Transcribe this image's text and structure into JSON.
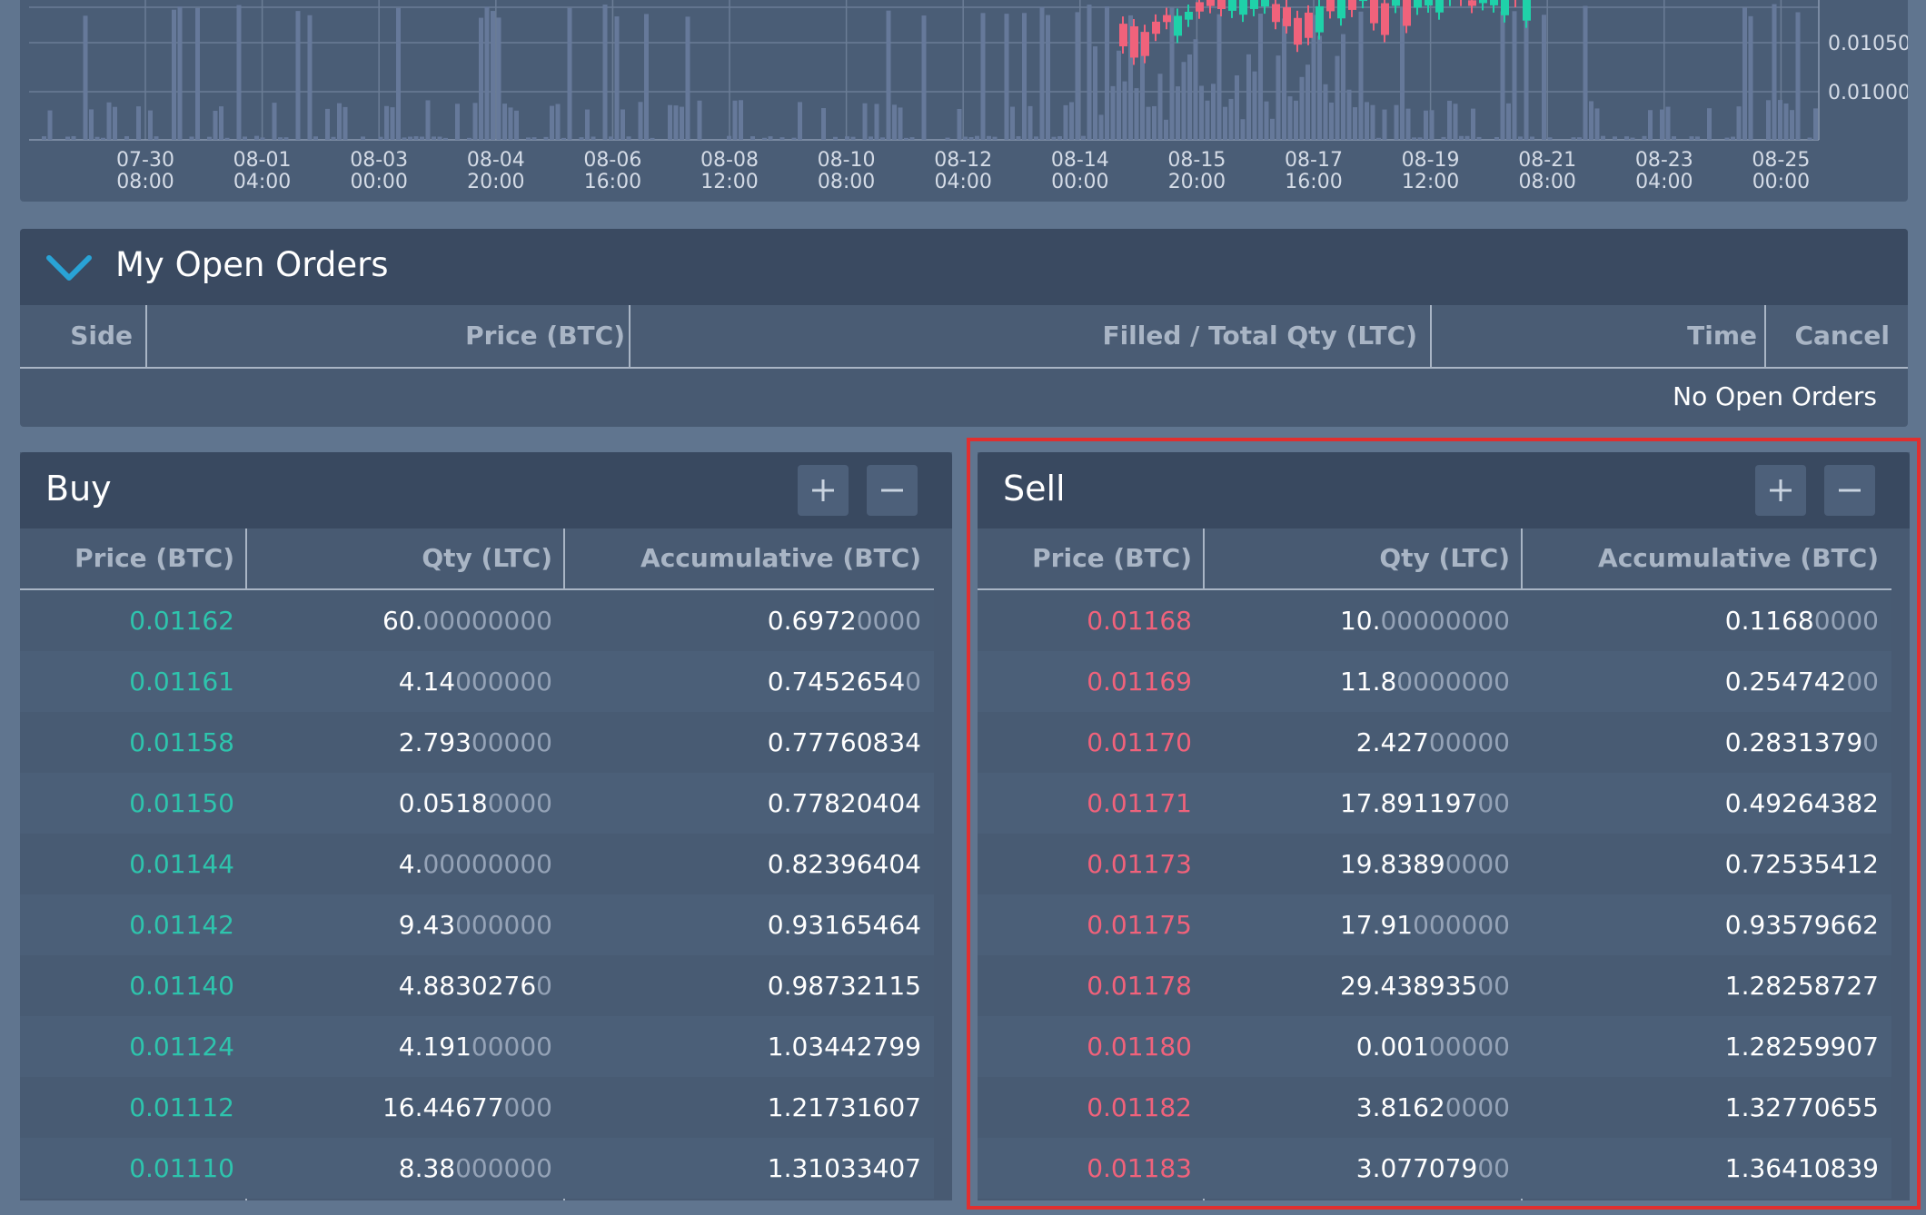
{
  "chart": {
    "y_ticks": [
      "0.01050",
      "0.01000"
    ],
    "x_ticks": [
      [
        "07-30",
        "08:00"
      ],
      [
        "08-01",
        "04:00"
      ],
      [
        "08-03",
        "00:00"
      ],
      [
        "08-04",
        "20:00"
      ],
      [
        "08-06",
        "16:00"
      ],
      [
        "08-08",
        "12:00"
      ],
      [
        "08-10",
        "08:00"
      ],
      [
        "08-12",
        "04:00"
      ],
      [
        "08-14",
        "00:00"
      ],
      [
        "08-15",
        "20:00"
      ],
      [
        "08-17",
        "16:00"
      ],
      [
        "08-19",
        "12:00"
      ],
      [
        "08-21",
        "08:00"
      ],
      [
        "08-23",
        "04:00"
      ],
      [
        "08-25",
        "00:00"
      ]
    ],
    "colors": {
      "up": "#1fd1a9",
      "down": "#f0627b",
      "volume": "#66799a"
    }
  },
  "open_orders": {
    "title": "My Open Orders",
    "columns": [
      "Side",
      "Price (BTC)",
      "Filled / Total Qty (LTC)",
      "Time",
      "Cancel"
    ],
    "empty_text": "No Open Orders"
  },
  "buy": {
    "title": "Buy",
    "columns": [
      "Price (BTC)",
      "Qty (LTC)",
      "Accumulative (BTC)"
    ],
    "rows": [
      {
        "price": "0.01162",
        "qty": [
          "60.",
          "00000000"
        ],
        "acc": [
          "0.6972",
          "0000"
        ]
      },
      {
        "price": "0.01161",
        "qty": [
          "4.14",
          "000000"
        ],
        "acc": [
          "0.7452654",
          "0"
        ]
      },
      {
        "price": "0.01158",
        "qty": [
          "2.793",
          "00000"
        ],
        "acc": [
          "0.77760834",
          ""
        ]
      },
      {
        "price": "0.01150",
        "qty": [
          "0.0518",
          "0000"
        ],
        "acc": [
          "0.77820404",
          ""
        ]
      },
      {
        "price": "0.01144",
        "qty": [
          "4.",
          "00000000"
        ],
        "acc": [
          "0.82396404",
          ""
        ]
      },
      {
        "price": "0.01142",
        "qty": [
          "9.43",
          "000000"
        ],
        "acc": [
          "0.93165464",
          ""
        ]
      },
      {
        "price": "0.01140",
        "qty": [
          "4.8830276",
          "0"
        ],
        "acc": [
          "0.98732115",
          ""
        ]
      },
      {
        "price": "0.01124",
        "qty": [
          "4.191",
          "00000"
        ],
        "acc": [
          "1.03442799",
          ""
        ]
      },
      {
        "price": "0.01112",
        "qty": [
          "16.44677",
          "000"
        ],
        "acc": [
          "1.21731607",
          ""
        ]
      },
      {
        "price": "0.01110",
        "qty": [
          "8.38",
          "000000"
        ],
        "acc": [
          "1.31033407",
          ""
        ]
      }
    ]
  },
  "sell": {
    "title": "Sell",
    "columns": [
      "Price (BTC)",
      "Qty (LTC)",
      "Accumulative (BTC)"
    ],
    "rows": [
      {
        "price": "0.01168",
        "qty": [
          "10.",
          "00000000"
        ],
        "acc": [
          "0.1168",
          "0000"
        ]
      },
      {
        "price": "0.01169",
        "qty": [
          "11.8",
          "0000000"
        ],
        "acc": [
          "0.254742",
          "00"
        ]
      },
      {
        "price": "0.01170",
        "qty": [
          "2.427",
          "00000"
        ],
        "acc": [
          "0.2831379",
          "0"
        ]
      },
      {
        "price": "0.01171",
        "qty": [
          "17.891197",
          "00"
        ],
        "acc": [
          "0.49264382",
          ""
        ]
      },
      {
        "price": "0.01173",
        "qty": [
          "19.8389",
          "0000"
        ],
        "acc": [
          "0.72535412",
          ""
        ]
      },
      {
        "price": "0.01175",
        "qty": [
          "17.91",
          "000000"
        ],
        "acc": [
          "0.93579662",
          ""
        ]
      },
      {
        "price": "0.01178",
        "qty": [
          "29.438935",
          "00"
        ],
        "acc": [
          "1.28258727",
          ""
        ]
      },
      {
        "price": "0.01180",
        "qty": [
          "0.001",
          "00000"
        ],
        "acc": [
          "1.28259907",
          ""
        ]
      },
      {
        "price": "0.01182",
        "qty": [
          "3.8162",
          "0000"
        ],
        "acc": [
          "1.32770655",
          ""
        ]
      },
      {
        "price": "0.01183",
        "qty": [
          "3.077079",
          "00"
        ],
        "acc": [
          "1.36410839",
          ""
        ]
      }
    ]
  },
  "buttons": {
    "plus": "+",
    "minus": "−"
  }
}
